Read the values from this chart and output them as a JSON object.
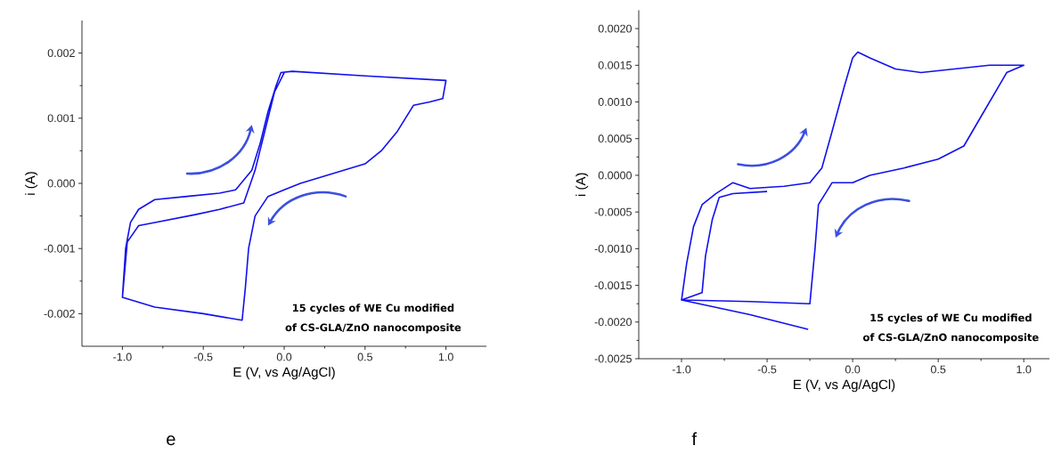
{
  "chart_data": [
    {
      "type": "line",
      "xlabel": "E (V, vs Ag/AgCl)",
      "ylabel": "i (A)",
      "xlim": [
        -1.25,
        1.25
      ],
      "ylim": [
        -0.0025,
        0.0025
      ],
      "xticks": [
        {
          "value": -1.0,
          "label": "-1.0"
        },
        {
          "value": -0.5,
          "label": "-0.5"
        },
        {
          "value": 0.0,
          "label": "0.0"
        },
        {
          "value": 0.5,
          "label": "0.5"
        },
        {
          "value": 1.0,
          "label": "1.0"
        }
      ],
      "yticks": [
        {
          "value": -0.002,
          "label": "-0.002"
        },
        {
          "value": -0.001,
          "label": "-0.001"
        },
        {
          "value": 0.0,
          "label": "0.000"
        },
        {
          "value": 0.001,
          "label": "0.001"
        },
        {
          "value": 0.002,
          "label": "0.002"
        }
      ],
      "series": [
        {
          "color": "#1010ee",
          "x": [
            -1.0,
            -0.98,
            -0.95,
            -0.9,
            -0.8,
            -0.6,
            -0.4,
            -0.3,
            -0.2,
            -0.15,
            -0.1,
            -0.05,
            -0.02,
            0.05,
            0.5,
            1.0,
            0.98,
            0.9,
            0.8,
            0.7,
            0.6,
            0.5,
            0.3,
            0.1,
            0.0,
            -0.1,
            -0.18,
            -0.22,
            -0.24,
            -0.26,
            -0.5,
            -0.8,
            -1.0,
            -0.97,
            -0.9,
            -0.8,
            -0.55,
            -0.4,
            -0.25,
            -0.18,
            -0.12,
            -0.06,
            0.0
          ],
          "values": [
            -0.00175,
            -0.001,
            -0.0006,
            -0.0004,
            -0.00025,
            -0.0002,
            -0.00015,
            -0.0001,
            0.0002,
            0.0006,
            0.0011,
            0.0015,
            0.0017,
            0.00172,
            0.00165,
            0.00158,
            0.0013,
            0.00125,
            0.0012,
            0.0008,
            0.0005,
            0.0003,
            0.00015,
            0.0,
            -0.0001,
            -0.0002,
            -0.0005,
            -0.001,
            -0.0016,
            -0.0021,
            -0.002,
            -0.0019,
            -0.00175,
            -0.0009,
            -0.00065,
            -0.0006,
            -0.00048,
            -0.0004,
            -0.0003,
            0.0002,
            0.0008,
            0.0014,
            0.0017
          ]
        }
      ],
      "annotations": [
        "15 cycles of WE Cu modified",
        "of CS-GLA/ZnO nanocomposite",
        "e"
      ]
    },
    {
      "type": "line",
      "xlabel": "E (V, vs Ag/AgCl)",
      "ylabel": "i (A)",
      "xlim": [
        -1.25,
        1.15
      ],
      "ylim": [
        -0.0025,
        0.00225
      ],
      "xticks": [
        {
          "value": -1.0,
          "label": "-1.0"
        },
        {
          "value": -0.5,
          "label": "-0.5"
        },
        {
          "value": 0.0,
          "label": "0.0"
        },
        {
          "value": 0.5,
          "label": "0.5"
        },
        {
          "value": 1.0,
          "label": "1.0"
        }
      ],
      "yticks": [
        {
          "value": -0.0025,
          "label": "-0.0025"
        },
        {
          "value": -0.002,
          "label": "-0.0020"
        },
        {
          "value": -0.0015,
          "label": "-0.0015"
        },
        {
          "value": -0.001,
          "label": "-0.0010"
        },
        {
          "value": -0.0005,
          "label": "-0.0005"
        },
        {
          "value": 0.0,
          "label": "0.0000"
        },
        {
          "value": 0.0005,
          "label": "0.0005"
        },
        {
          "value": 0.001,
          "label": "0.0010"
        },
        {
          "value": 0.0015,
          "label": "0.0015"
        },
        {
          "value": 0.002,
          "label": "0.0020"
        }
      ],
      "series": [
        {
          "color": "#1010ee",
          "x": [
            -0.26,
            -0.6,
            -1.0,
            -0.97,
            -0.93,
            -0.88,
            -0.8,
            -0.7,
            -0.6,
            -0.4,
            -0.25,
            -0.18,
            -0.12,
            -0.05,
            0.0,
            0.03,
            0.1,
            0.25,
            0.4,
            0.6,
            0.8,
            1.0,
            0.9,
            0.85,
            0.75,
            0.65,
            0.5,
            0.3,
            0.1,
            0.0,
            -0.12,
            -0.2,
            -0.22,
            -0.25,
            -0.6,
            -1.0,
            -0.88,
            -0.86,
            -0.82,
            -0.78,
            -0.7,
            -0.5
          ],
          "values": [
            -0.0021,
            -0.0019,
            -0.0017,
            -0.0012,
            -0.0007,
            -0.0004,
            -0.00025,
            -0.0001,
            -0.00018,
            -0.00015,
            -0.0001,
            0.0001,
            0.0006,
            0.0012,
            0.0016,
            0.00168,
            0.0016,
            0.00145,
            0.0014,
            0.00145,
            0.0015,
            0.0015,
            0.0014,
            0.0012,
            0.0008,
            0.0004,
            0.00022,
            0.0001,
            0.0,
            -0.0001,
            -0.0001,
            -0.0004,
            -0.001,
            -0.00175,
            -0.00172,
            -0.0017,
            -0.0016,
            -0.0011,
            -0.0006,
            -0.0003,
            -0.00025,
            -0.00022
          ]
        }
      ],
      "annotations": [
        "15 cycles of WE Cu modified",
        "of CS-GLA/ZnO nanocomposite",
        "f"
      ]
    }
  ]
}
